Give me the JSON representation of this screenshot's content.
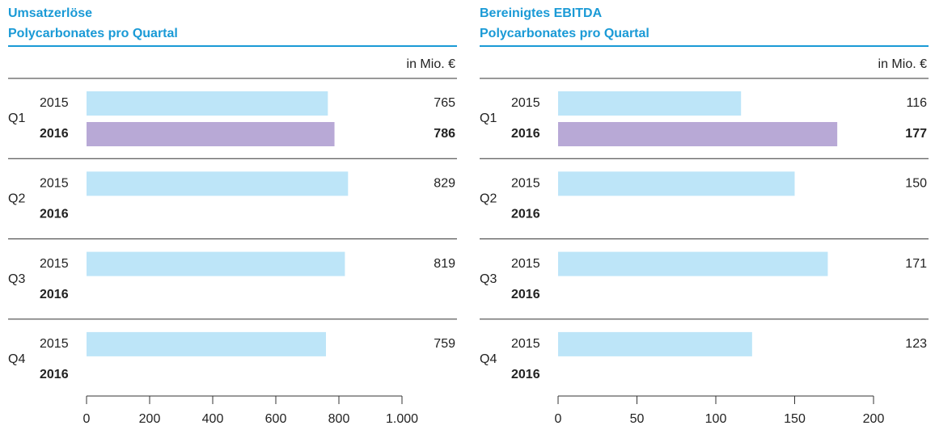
{
  "chart_data": [
    {
      "type": "bar",
      "orientation": "horizontal",
      "title": "Umsatzerlöse",
      "subtitle": "Polycarbonates pro Quartal",
      "unit_label": "in Mio. €",
      "categories": [
        "Q1",
        "Q2",
        "Q3",
        "Q4"
      ],
      "series": [
        {
          "name": "2015",
          "color": "#bde5f8",
          "values": [
            765,
            829,
            819,
            759
          ]
        },
        {
          "name": "2016",
          "color": "#b8a9d6",
          "values": [
            786,
            null,
            null,
            null
          ]
        }
      ],
      "xlim": [
        0,
        1000
      ],
      "xticks": [
        0,
        200,
        400,
        600,
        800,
        {
          "value": 1000,
          "label": "1.000"
        }
      ]
    },
    {
      "type": "bar",
      "orientation": "horizontal",
      "title": "Bereinigtes EBITDA",
      "subtitle": "Polycarbonates pro Quartal",
      "unit_label": "in Mio. €",
      "categories": [
        "Q1",
        "Q2",
        "Q3",
        "Q4"
      ],
      "series": [
        {
          "name": "2015",
          "color": "#bde5f8",
          "values": [
            116,
            150,
            171,
            123
          ]
        },
        {
          "name": "2016",
          "color": "#b8a9d6",
          "values": [
            177,
            null,
            null,
            null
          ]
        }
      ],
      "xlim": [
        0,
        200
      ],
      "xticks": [
        0,
        50,
        100,
        150,
        200
      ]
    }
  ]
}
